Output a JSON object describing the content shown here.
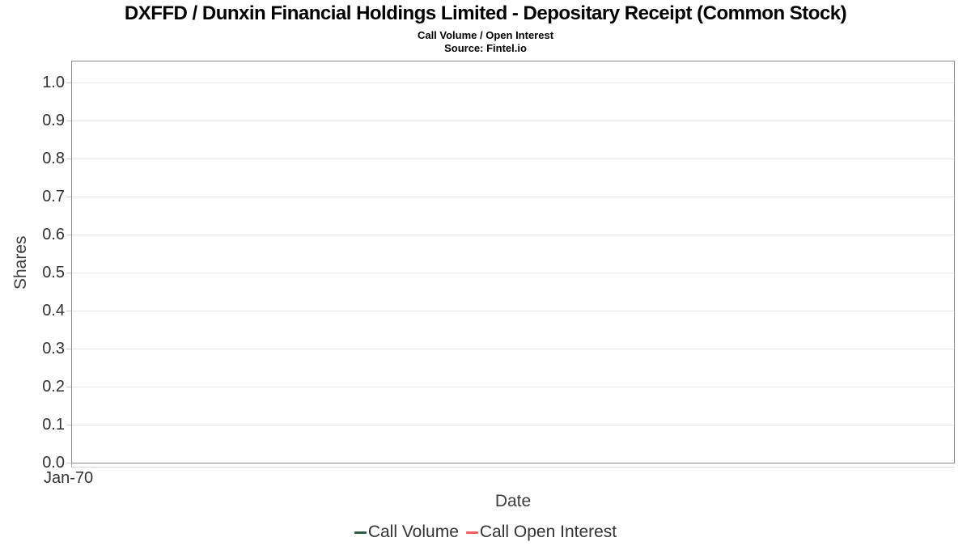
{
  "chart_data": {
    "type": "line",
    "title": "DXFFD / Dunxin Financial Holdings Limited - Depositary Receipt (Common Stock)",
    "subtitle": "Call Volume / Open Interest",
    "source": "Source: Fintel.io",
    "xlabel": "Date",
    "ylabel": "Shares",
    "x_tick_labels": [
      "Jan-70"
    ],
    "y_tick_labels": [
      "1.0",
      "0.9",
      "0.8",
      "0.7",
      "0.6",
      "0.5",
      "0.4",
      "0.3",
      "0.2",
      "0.1",
      "0.0"
    ],
    "ylim": [
      0.0,
      1.0
    ],
    "grid": true,
    "legend_position": "bottom",
    "series": [
      {
        "name": "Call Volume",
        "color": "#2e5d41",
        "x": [],
        "values": []
      },
      {
        "name": "Call Open Interest",
        "color": "#f05f5f",
        "x": [],
        "values": []
      }
    ],
    "plot_is_empty": true,
    "colors": {
      "plot_border": "#8c8c8c",
      "gridline": "#e6e6e6",
      "text": "#333333",
      "title_text": "#000000"
    }
  }
}
